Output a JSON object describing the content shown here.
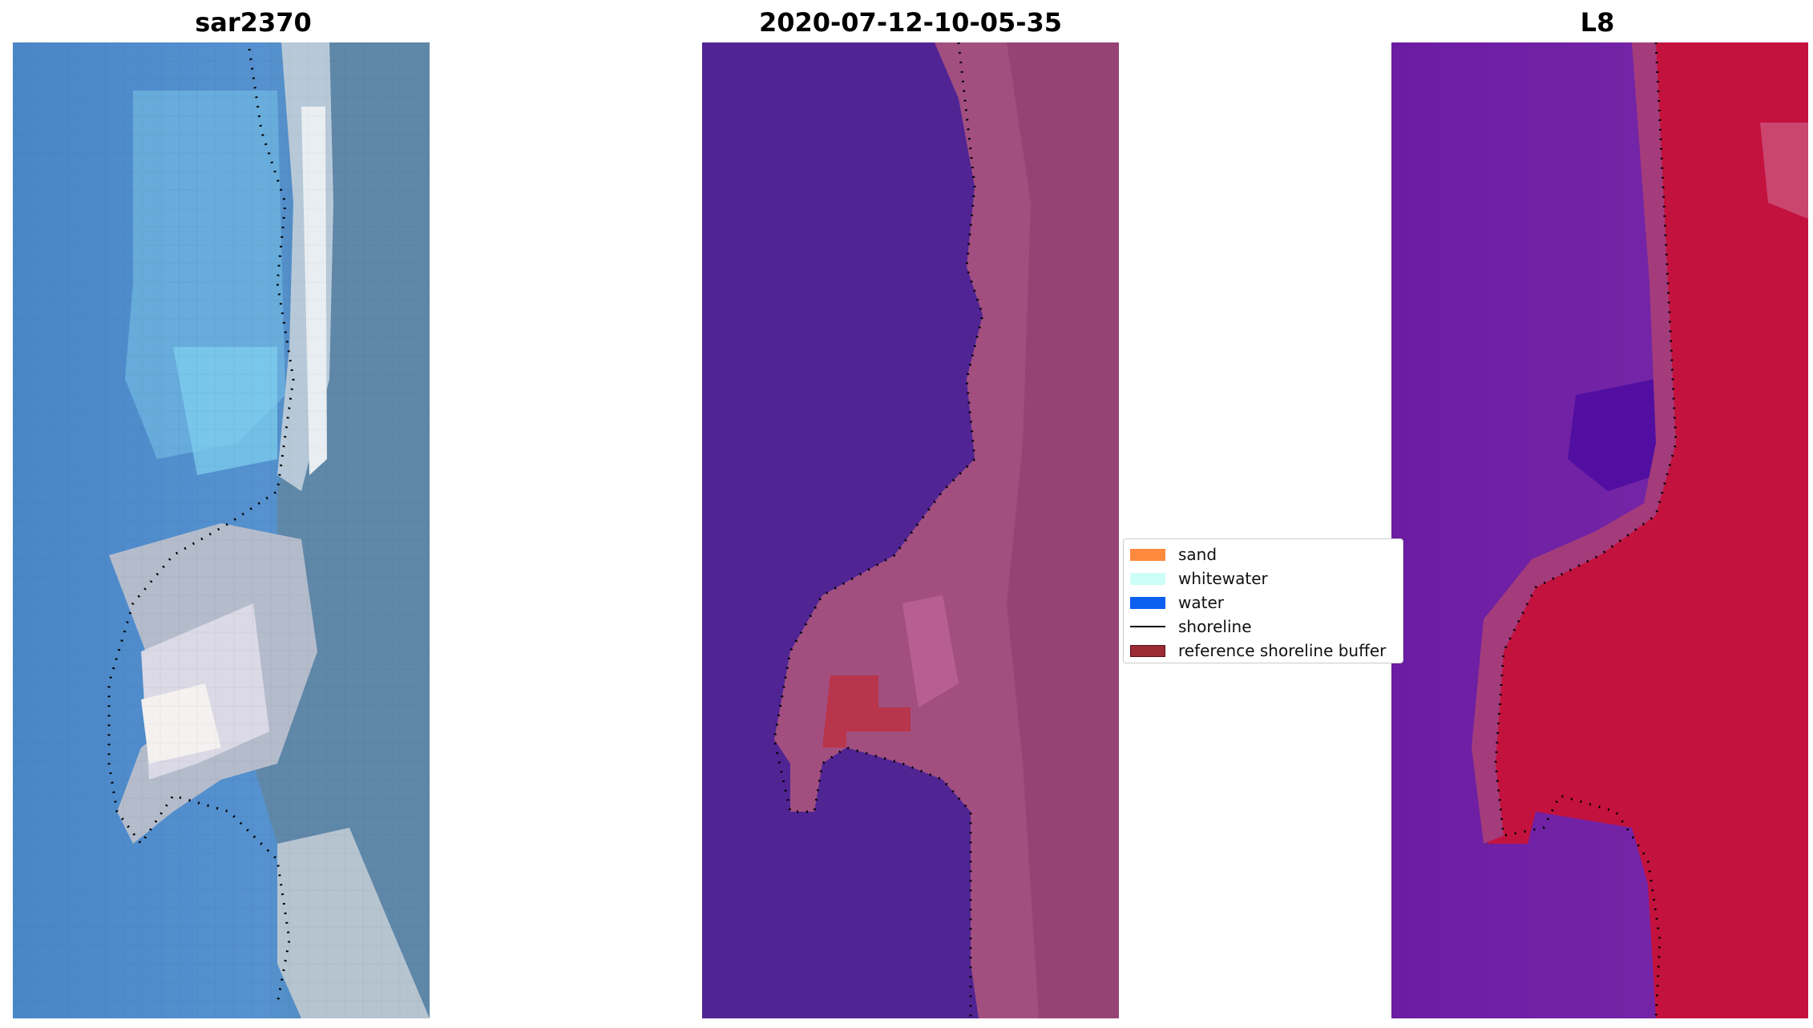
{
  "panels": {
    "left": {
      "title": "sar2370"
    },
    "middle": {
      "title": "2020-07-12-10-05-35"
    },
    "right": {
      "title": "L8"
    }
  },
  "legend": {
    "items": [
      {
        "label": "sand",
        "color": "#ff8a3d",
        "kind": "patch"
      },
      {
        "label": "whitewater",
        "color": "#ccfff7",
        "kind": "patch"
      },
      {
        "label": "water",
        "color": "#0d5ff0",
        "kind": "patch"
      },
      {
        "label": "shoreline",
        "color": "#000000",
        "kind": "line"
      },
      {
        "label": "reference shoreline buffer",
        "color": "#9b2c34",
        "kind": "patch"
      }
    ]
  },
  "colors": {
    "sar_water": "#4b88cc",
    "sar_light_water": "#7ec8e8",
    "sar_land": "#5c85a6",
    "sar_sand": "#c8d2de",
    "classified_water": "#512494",
    "classified_land": "#a1507f",
    "classified_buffer": "#b9354b",
    "index_water": "#6a1aa0",
    "index_land": "#c4123f",
    "index_transition": "#a43c7c"
  }
}
